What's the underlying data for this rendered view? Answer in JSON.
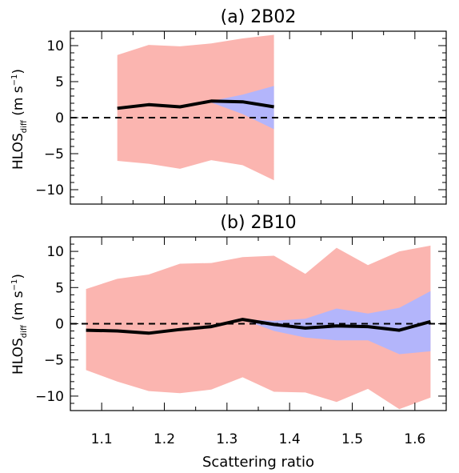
{
  "chart_data": [
    {
      "type": "line",
      "title": "(a) 2B02",
      "xlabel": "",
      "ylabel": {
        "base": "HLOS",
        "sub": "diff",
        "unit_open": " (m s",
        "sup": "−1",
        "unit_close": ")"
      },
      "xlim": [
        1.05,
        1.65
      ],
      "ylim": [
        -12,
        12
      ],
      "x_ticks": [
        1.1,
        1.2,
        1.3,
        1.4,
        1.5,
        1.6
      ],
      "y_ticks": [
        -10,
        -5,
        0,
        5,
        10
      ],
      "y_tick_labels": [
        "−10",
        "−5",
        "0",
        "5",
        "10"
      ],
      "x_tick_labels_shown": false,
      "zero_line": {
        "y": 0,
        "style": "dashed"
      },
      "colors": {
        "outer_band": "#fbb5b0",
        "inner_band": "#b3b5fb",
        "line": "#000000"
      },
      "x": [
        1.125,
        1.175,
        1.225,
        1.275,
        1.325,
        1.375
      ],
      "series": [
        {
          "kind": "line",
          "values": [
            1.3,
            1.8,
            1.5,
            2.3,
            2.2,
            1.5
          ]
        },
        {
          "kind": "band_outer",
          "upper": [
            8.7,
            10.1,
            9.9,
            10.3,
            11.0,
            11.5
          ],
          "lower": [
            -6.0,
            -6.4,
            -7.1,
            -5.9,
            -6.6,
            -8.7
          ]
        },
        {
          "kind": "band_inner",
          "upper": [
            1.3,
            1.8,
            1.5,
            2.3,
            3.2,
            4.4
          ],
          "lower": [
            1.3,
            1.8,
            1.5,
            2.1,
            0.5,
            -1.6
          ]
        }
      ]
    },
    {
      "type": "line",
      "title": "(b) 2B10",
      "xlabel": "Scattering ratio",
      "ylabel": {
        "base": "HLOS",
        "sub": "diff",
        "unit_open": " (m s",
        "sup": "−1",
        "unit_close": ")"
      },
      "xlim": [
        1.05,
        1.65
      ],
      "ylim": [
        -12,
        12
      ],
      "x_ticks": [
        1.1,
        1.2,
        1.3,
        1.4,
        1.5,
        1.6
      ],
      "x_tick_labels": [
        "1.1",
        "1.2",
        "1.3",
        "1.4",
        "1.5",
        "1.6"
      ],
      "y_ticks": [
        -10,
        -5,
        0,
        5,
        10
      ],
      "y_tick_labels": [
        "−10",
        "−5",
        "0",
        "5",
        "10"
      ],
      "zero_line": {
        "y": 0,
        "style": "dashed"
      },
      "colors": {
        "outer_band": "#fbb5b0",
        "inner_band": "#b3b5fb",
        "line": "#000000"
      },
      "x": [
        1.075,
        1.125,
        1.175,
        1.225,
        1.275,
        1.325,
        1.375,
        1.425,
        1.475,
        1.525,
        1.575,
        1.625
      ],
      "series": [
        {
          "kind": "line",
          "values": [
            -0.9,
            -1.0,
            -1.3,
            -0.8,
            -0.4,
            0.6,
            -0.1,
            -0.6,
            -0.3,
            -0.4,
            -0.9,
            0.3
          ]
        },
        {
          "kind": "band_outer",
          "upper": [
            4.8,
            6.2,
            6.8,
            8.3,
            8.4,
            9.2,
            9.4,
            6.9,
            10.5,
            8.1,
            10.0,
            10.8
          ],
          "lower": [
            -6.4,
            -8.0,
            -9.3,
            -9.6,
            -9.1,
            -7.4,
            -9.4,
            -9.5,
            -10.8,
            -9.0,
            -11.8,
            -10.2
          ]
        },
        {
          "kind": "band_inner",
          "upper": [
            -0.9,
            -1.0,
            -1.3,
            -0.8,
            -0.4,
            0.6,
            0.4,
            0.7,
            2.1,
            1.4,
            2.2,
            4.5
          ],
          "lower": [
            -0.9,
            -1.0,
            -1.3,
            -0.8,
            -0.4,
            0.6,
            -1.0,
            -1.9,
            -2.3,
            -2.3,
            -4.2,
            -3.8
          ]
        }
      ]
    }
  ]
}
